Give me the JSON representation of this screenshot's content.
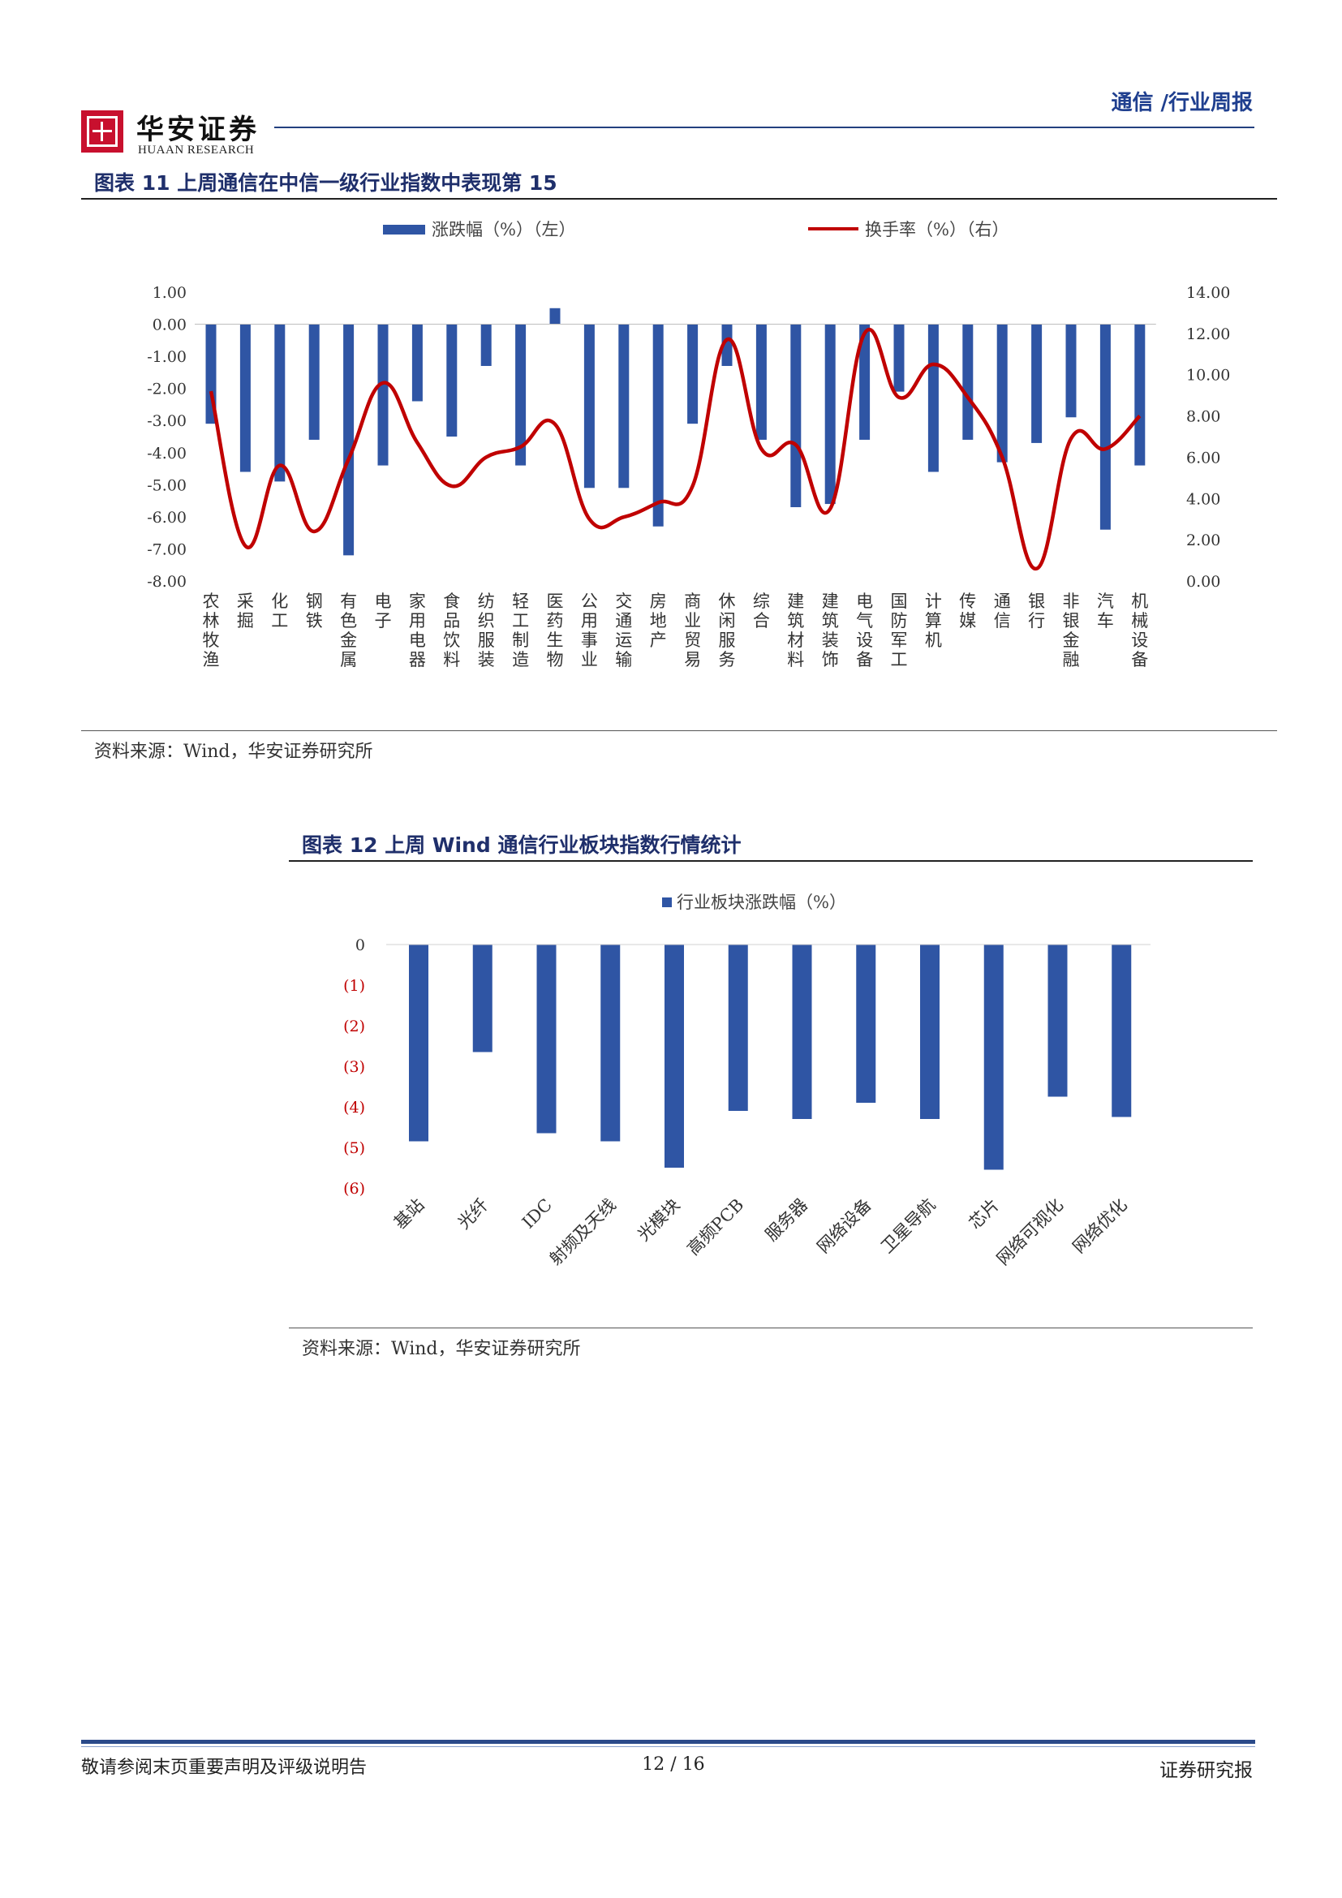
{
  "header": {
    "logo_cn": "华安证券",
    "logo_en": "HUAAN RESEARCH",
    "section": "通信 /行业周报"
  },
  "figure11": {
    "title": "图表 11  上周通信在中信一级行业指数中表现第 15",
    "source": "资料来源：Wind，华安证券研究所"
  },
  "figure12": {
    "title": "图表 12  上周 Wind 通信行业板块指数行情统计",
    "source": "资料来源：Wind，华安证券研究所"
  },
  "chart_data": [
    {
      "type": "bar+line",
      "legend_position": "top",
      "categories": [
        "农林牧渔",
        "采掘",
        "化工",
        "钢铁",
        "有色金属",
        "电子",
        "家用电器",
        "食品饮料",
        "纺织服装",
        "轻工制造",
        "医药生物",
        "公用事业",
        "交通运输",
        "房地产",
        "商业贸易",
        "休闲服务",
        "综合",
        "建筑材料",
        "建筑装饰",
        "电气设备",
        "国防军工",
        "计算机",
        "传媒",
        "通信",
        "银行",
        "非银金融",
        "汽车",
        "机械设备"
      ],
      "series": [
        {
          "name": "涨跌幅（%）（左）",
          "kind": "bar",
          "axis": "left",
          "color": "#2f55a4",
          "values": [
            -3.1,
            -4.6,
            -4.9,
            -3.6,
            -7.2,
            -4.4,
            -2.4,
            -3.5,
            -1.3,
            -4.4,
            0.5,
            -5.1,
            -5.1,
            -6.3,
            -3.1,
            -1.3,
            -3.6,
            -5.7,
            -5.6,
            -3.6,
            -2.1,
            -4.6,
            -3.6,
            -4.3,
            -3.7,
            -2.9,
            -6.4,
            -4.4
          ]
        },
        {
          "name": "换手率（%）（右）",
          "kind": "line",
          "axis": "right",
          "color": "#c00000",
          "values": [
            9.2,
            1.7,
            5.6,
            2.4,
            5.9,
            9.6,
            6.7,
            4.6,
            6.0,
            6.5,
            7.6,
            3.0,
            3.1,
            3.8,
            4.6,
            11.7,
            6.4,
            6.6,
            3.5,
            12.0,
            8.9,
            10.5,
            8.9,
            6.0,
            0.6,
            6.9,
            6.4,
            8.0
          ]
        }
      ],
      "y_left": {
        "min": -8,
        "max": 1,
        "ticks": [
          "1.00",
          "0.00",
          "-1.00",
          "-2.00",
          "-3.00",
          "-4.00",
          "-5.00",
          "-6.00",
          "-7.00",
          "-8.00"
        ]
      },
      "y_right": {
        "min": 0,
        "max": 14,
        "ticks": [
          "14.00",
          "12.00",
          "10.00",
          "8.00",
          "6.00",
          "4.00",
          "2.00",
          "0.00"
        ]
      },
      "grid": false
    },
    {
      "type": "bar",
      "legend_position": "top",
      "categories": [
        "基站",
        "光纤",
        "IDC",
        "射频及天线",
        "光模块",
        "高频PCB",
        "服务器",
        "网络设备",
        "卫星导航",
        "芯片",
        "网络可视化",
        "网络优化"
      ],
      "series": [
        {
          "name": "行业板块涨跌幅（%）",
          "color": "#2f55a4",
          "values": [
            -4.85,
            -2.65,
            -4.65,
            -4.85,
            -5.5,
            -4.1,
            -4.3,
            -3.9,
            -4.3,
            -5.55,
            -3.75,
            -4.25
          ]
        }
      ],
      "y": {
        "min": -6,
        "max": 0,
        "ticks": [
          "0",
          "(1)",
          "(2)",
          "(3)",
          "(4)",
          "(5)",
          "(6)"
        ],
        "negative_tick_color": "#c00000"
      },
      "grid": false
    }
  ],
  "footer": {
    "disclaimer": "敬请参阅末页重要声明及评级说明告",
    "page": "12 / 16",
    "doc_type": "证券研究报"
  }
}
